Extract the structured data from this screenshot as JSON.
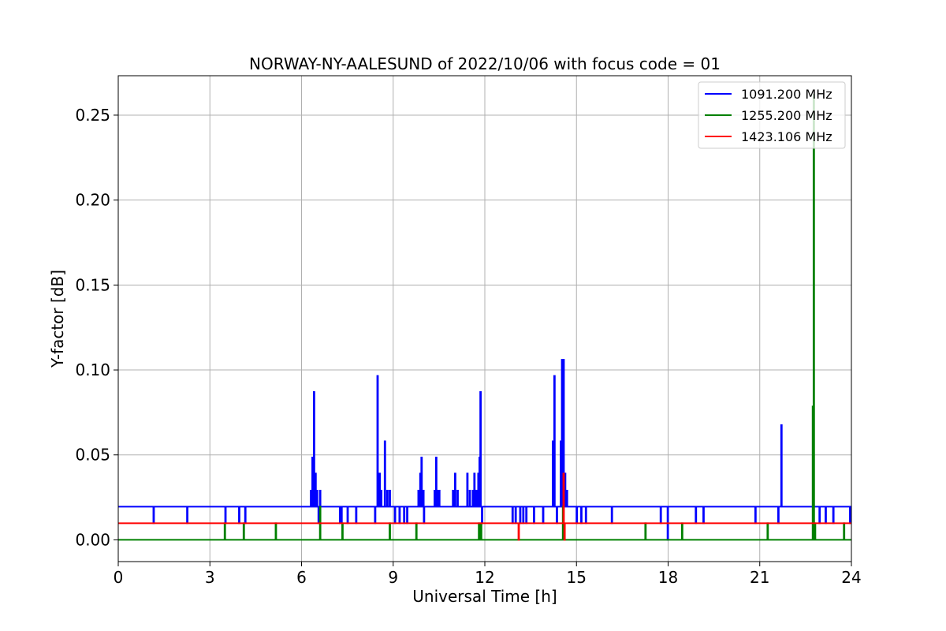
{
  "chart_data": {
    "type": "line",
    "title": "NORWAY-NY-AALESUND of 2022/10/06 with focus code = 01",
    "xlabel": "Universal Time [h]",
    "ylabel": "Y-factor [dB]",
    "xlim": [
      0,
      24
    ],
    "ylim": [
      -0.0128,
      0.2732
    ],
    "xticks": [
      0,
      3,
      6,
      9,
      12,
      15,
      18,
      21,
      24
    ],
    "xtick_labels": [
      "0",
      "3",
      "6",
      "9",
      "12",
      "15",
      "18",
      "21",
      "24"
    ],
    "yticks": [
      0.0,
      0.05,
      0.1,
      0.15,
      0.2,
      0.25
    ],
    "ytick_labels": [
      "0.00",
      "0.05",
      "0.10",
      "0.15",
      "0.20",
      "0.25"
    ],
    "grid": true,
    "legend_position": "top-right",
    "series": [
      {
        "name": "1091.200 MHz",
        "color": "#0000ff",
        "baseline": 0.0195,
        "spikes": [
          [
            1.15,
            0.0098
          ],
          [
            2.25,
            0.0098
          ],
          [
            3.5,
            0.0098
          ],
          [
            3.95,
            0.0098
          ],
          [
            4.15,
            0.0098
          ],
          [
            6.3,
            0.029
          ],
          [
            6.35,
            0.0485
          ],
          [
            6.4,
            0.087
          ],
          [
            6.45,
            0.039
          ],
          [
            6.5,
            0.029
          ],
          [
            6.55,
            0.0098
          ],
          [
            6.6,
            0.029
          ],
          [
            7.25,
            0.0098
          ],
          [
            7.3,
            0.0098
          ],
          [
            7.5,
            0.0098
          ],
          [
            7.78,
            0.0098
          ],
          [
            8.4,
            0.0098
          ],
          [
            8.48,
            0.0965
          ],
          [
            8.55,
            0.039
          ],
          [
            8.6,
            0.029
          ],
          [
            8.72,
            0.058
          ],
          [
            8.8,
            0.029
          ],
          [
            8.88,
            0.029
          ],
          [
            9.05,
            0.0098
          ],
          [
            9.2,
            0.0098
          ],
          [
            9.35,
            0.0098
          ],
          [
            9.45,
            0.0098
          ],
          [
            9.82,
            0.029
          ],
          [
            9.88,
            0.039
          ],
          [
            9.92,
            0.0485
          ],
          [
            9.98,
            0.029
          ],
          [
            10.0,
            0.0098
          ],
          [
            10.35,
            0.029
          ],
          [
            10.4,
            0.0485
          ],
          [
            10.45,
            0.029
          ],
          [
            10.5,
            0.029
          ],
          [
            10.95,
            0.029
          ],
          [
            11.02,
            0.039
          ],
          [
            11.1,
            0.029
          ],
          [
            11.42,
            0.039
          ],
          [
            11.5,
            0.029
          ],
          [
            11.6,
            0.029
          ],
          [
            11.65,
            0.039
          ],
          [
            11.72,
            0.029
          ],
          [
            11.78,
            0.039
          ],
          [
            11.82,
            0.0485
          ],
          [
            11.85,
            0.087
          ],
          [
            11.9,
            0.0098
          ],
          [
            12.9,
            0.0098
          ],
          [
            13.0,
            0.0098
          ],
          [
            13.15,
            0.0098
          ],
          [
            13.25,
            0.0098
          ],
          [
            13.35,
            0.0098
          ],
          [
            13.6,
            0.0098
          ],
          [
            13.9,
            0.0098
          ],
          [
            14.22,
            0.058
          ],
          [
            14.27,
            0.0965
          ],
          [
            14.35,
            0.0098
          ],
          [
            14.48,
            0.058
          ],
          [
            14.52,
            0.106
          ],
          [
            14.57,
            0.106
          ],
          [
            14.62,
            0.039
          ],
          [
            14.68,
            0.029
          ],
          [
            15.0,
            0.0098
          ],
          [
            15.15,
            0.0098
          ],
          [
            15.3,
            0.0098
          ],
          [
            16.15,
            0.0098
          ],
          [
            17.75,
            0.0098
          ],
          [
            17.98,
            0.0
          ],
          [
            18.9,
            0.0098
          ],
          [
            19.15,
            0.0098
          ],
          [
            20.85,
            0.0098
          ],
          [
            21.6,
            0.0098
          ],
          [
            21.7,
            0.0675
          ],
          [
            22.95,
            0.0098
          ],
          [
            23.15,
            0.0098
          ],
          [
            23.4,
            0.0098
          ],
          [
            23.95,
            0.0098
          ]
        ]
      },
      {
        "name": "1255.200 MHz",
        "color": "#008000",
        "baseline": 0.0,
        "spikes": [
          [
            3.48,
            0.0098
          ],
          [
            4.1,
            0.0098
          ],
          [
            5.15,
            0.0098
          ],
          [
            6.6,
            0.0195
          ],
          [
            7.33,
            0.0098
          ],
          [
            8.88,
            0.0098
          ],
          [
            9.75,
            0.0098
          ],
          [
            11.8,
            0.0098
          ],
          [
            11.87,
            0.0098
          ],
          [
            14.55,
            0.0195
          ],
          [
            17.25,
            0.0098
          ],
          [
            18.45,
            0.0098
          ],
          [
            21.25,
            0.0098
          ],
          [
            22.73,
            0.0785
          ],
          [
            22.76,
            0.262
          ],
          [
            22.8,
            0.0098
          ],
          [
            23.75,
            0.0098
          ]
        ]
      },
      {
        "name": "1423.106 MHz",
        "color": "#ff0000",
        "baseline": 0.0098,
        "spikes": [
          [
            13.1,
            0.0
          ],
          [
            14.57,
            0.039
          ],
          [
            14.6,
            0.0
          ]
        ]
      }
    ]
  }
}
